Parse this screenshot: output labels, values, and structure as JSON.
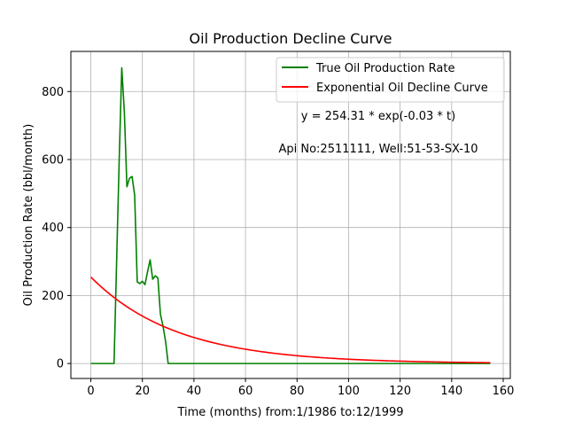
{
  "chart_data": {
    "type": "line",
    "title": "Oil Production Decline Curve",
    "xlabel": "Time (months) from:1/1986 to:12/1999",
    "ylabel": "Oil Production Rate (bbl/month)",
    "xlim": [
      -7.75,
      162.75
    ],
    "ylim": [
      -44,
      918
    ],
    "xticks": [
      0,
      20,
      40,
      60,
      80,
      100,
      120,
      140,
      160
    ],
    "yticks": [
      0,
      200,
      400,
      600,
      800
    ],
    "grid": true,
    "legend_position": "top-right",
    "annotations": [
      "y = 254.31 * exp(-0.03 * t)",
      "Api No:2511111, Well:51-53-SX-10"
    ],
    "series": [
      {
        "name": "True Oil Production Rate",
        "color": "#008000",
        "x": [
          0,
          9,
          11,
          12,
          13,
          14,
          15,
          16,
          17,
          18,
          19,
          20,
          21,
          22,
          23,
          24,
          25,
          26,
          27,
          28,
          29,
          30,
          31,
          155
        ],
        "y": [
          0,
          0,
          600,
          870,
          740,
          520,
          545,
          550,
          495,
          240,
          235,
          242,
          232,
          270,
          305,
          248,
          258,
          252,
          145,
          110,
          65,
          0,
          0,
          0
        ]
      },
      {
        "name": "Exponential Oil Decline Curve",
        "color": "#ff0000",
        "function": {
          "a": 254.31,
          "b": -0.03
        },
        "x_range": [
          0,
          155
        ]
      }
    ]
  }
}
